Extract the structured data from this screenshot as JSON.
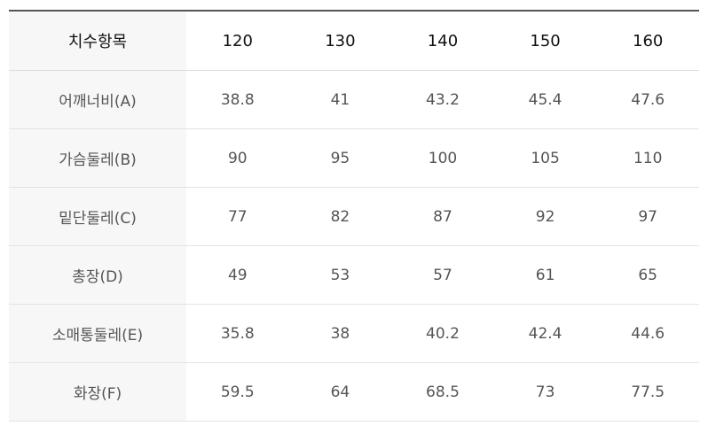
{
  "table": {
    "header": [
      "치수항목",
      "120",
      "130",
      "140",
      "150",
      "160"
    ],
    "rows": [
      [
        "어깨너비(A)",
        "38.8",
        "41",
        "43.2",
        "45.4",
        "47.6"
      ],
      [
        "가슴둘레(B)",
        "90",
        "95",
        "100",
        "105",
        "110"
      ],
      [
        "밑단둘레(C)",
        "77",
        "82",
        "87",
        "92",
        "97"
      ],
      [
        "총장(D)",
        "49",
        "53",
        "57",
        "61",
        "65"
      ],
      [
        "소매통둘레(E)",
        "35.8",
        "38",
        "40.2",
        "42.4",
        "44.6"
      ],
      [
        "화장(F)",
        "59.5",
        "64",
        "68.5",
        "73",
        "77.5"
      ]
    ]
  }
}
